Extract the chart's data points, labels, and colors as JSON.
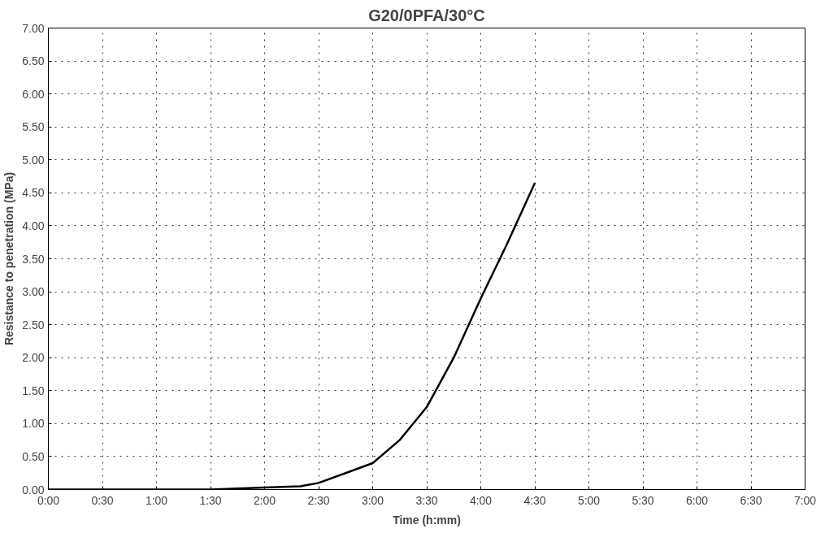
{
  "chart_data": {
    "type": "line",
    "title": "G20/0PFA/30°C",
    "xlabel": "Time (h:mm)",
    "ylabel": "Resistance to penetration (MPa)",
    "x": [
      0,
      0.5,
      1,
      1.5,
      2,
      2.33,
      2.5,
      2.75,
      3,
      3.25,
      3.5,
      3.75,
      4,
      4.25,
      4.5
    ],
    "series": [
      {
        "color": "#000000",
        "values": [
          0,
          0,
          0,
          0,
          0.03,
          0.05,
          0.1,
          0.25,
          0.4,
          0.75,
          1.25,
          2.0,
          2.9,
          3.75,
          4.65
        ]
      }
    ],
    "xlim": [
      0,
      7
    ],
    "xticks": [
      {
        "value": 0,
        "label": "0:00"
      },
      {
        "value": 0.5,
        "label": "0:30"
      },
      {
        "value": 1,
        "label": "1:00"
      },
      {
        "value": 1.5,
        "label": "1:30"
      },
      {
        "value": 2,
        "label": "2:00"
      },
      {
        "value": 2.5,
        "label": "2:30"
      },
      {
        "value": 3,
        "label": "3:00"
      },
      {
        "value": 3.5,
        "label": "3:30"
      },
      {
        "value": 4,
        "label": "4:00"
      },
      {
        "value": 4.5,
        "label": "4:30"
      },
      {
        "value": 5,
        "label": "5:00"
      },
      {
        "value": 5.5,
        "label": "5:30"
      },
      {
        "value": 6,
        "label": "6:00"
      },
      {
        "value": 6.5,
        "label": "6:30"
      },
      {
        "value": 7,
        "label": "7:00"
      }
    ],
    "ylim": [
      0,
      7
    ],
    "yticks": [
      {
        "value": 0,
        "label": "0.00"
      },
      {
        "value": 0.5,
        "label": "0.50"
      },
      {
        "value": 1,
        "label": "1.00"
      },
      {
        "value": 1.5,
        "label": "1.50"
      },
      {
        "value": 2,
        "label": "2.00"
      },
      {
        "value": 2.5,
        "label": "2.50"
      },
      {
        "value": 3,
        "label": "3.00"
      },
      {
        "value": 3.5,
        "label": "3.50"
      },
      {
        "value": 4,
        "label": "4.00"
      },
      {
        "value": 4.5,
        "label": "4.50"
      },
      {
        "value": 5,
        "label": "5.00"
      },
      {
        "value": 5.5,
        "label": "5.50"
      },
      {
        "value": 6,
        "label": "6.00"
      },
      {
        "value": 6.5,
        "label": "6.50"
      },
      {
        "value": 7,
        "label": "7.00"
      }
    ],
    "grid": true,
    "line_style": "solid"
  }
}
